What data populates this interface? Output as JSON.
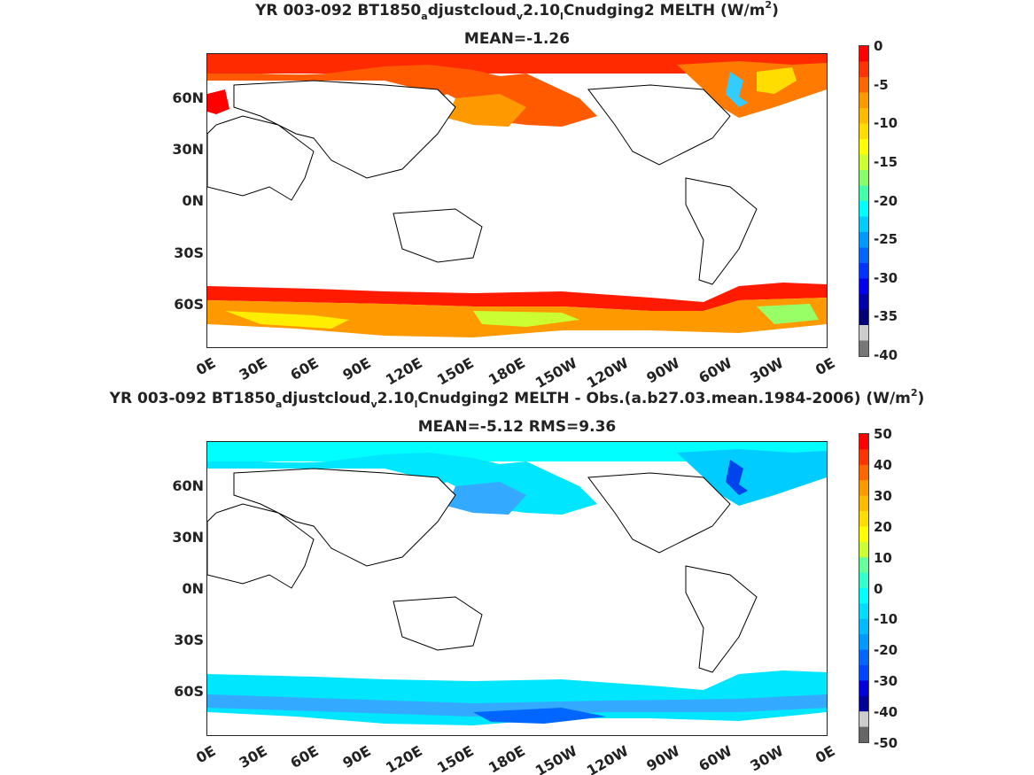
{
  "panels": [
    {
      "title_line1_pre": "YR 003-092 BT1850",
      "title_sub1": "a",
      "title_mid1": "djustcloud",
      "title_sub2": "v",
      "title_mid2": "2.10",
      "title_sub3": "l",
      "title_post": "Cnudging2  MELTH (W/m",
      "title_sup": "2",
      "title_close": ")",
      "title_line2": "MEAN=-1.26",
      "lat_labels": [
        "60N",
        "30N",
        "0N",
        "30S",
        "60S"
      ],
      "lon_labels": [
        "0E",
        "30E",
        "60E",
        "90E",
        "120E",
        "150E",
        "180E",
        "150W",
        "120W",
        "90W",
        "60W",
        "30W",
        "0E"
      ],
      "colorbar_labels": [
        "0",
        "-5",
        "-10",
        "-15",
        "-20",
        "-25",
        "-30",
        "-35",
        "-40"
      ],
      "colorbar_colors": [
        "#ff0000",
        "#ff3300",
        "#ff6600",
        "#ff9900",
        "#ffbb00",
        "#ffdd00",
        "#ffff00",
        "#ccff33",
        "#88ff66",
        "#44ffaa",
        "#00ffff",
        "#00ccff",
        "#0099ff",
        "#0066ff",
        "#0033ff",
        "#0000ee",
        "#0000aa",
        "#000077",
        "#cccccc",
        "#777777"
      ]
    },
    {
      "title_line1_pre": "YR 003-092 BT1850",
      "title_sub1": "a",
      "title_mid1": "djustcloud",
      "title_sub2": "v",
      "title_mid2": "2.10",
      "title_sub3": "l",
      "title_post": "Cnudging2 MELTH - Obs.(a.b27.03.mean.1984-2006) (W/m",
      "title_sup": "2",
      "title_close": ")",
      "title_line2": "MEAN=-5.12 RMS=9.36",
      "lat_labels": [
        "60N",
        "30N",
        "0N",
        "30S",
        "60S"
      ],
      "lon_labels": [
        "0E",
        "30E",
        "60E",
        "90E",
        "120E",
        "150E",
        "180E",
        "150W",
        "120W",
        "90W",
        "60W",
        "30W",
        "0E"
      ],
      "colorbar_labels": [
        "50",
        "40",
        "30",
        "20",
        "10",
        "0",
        "-10",
        "-20",
        "-30",
        "-40",
        "-50"
      ],
      "colorbar_colors": [
        "#ff0000",
        "#ff3300",
        "#ff6600",
        "#ff9900",
        "#ffbb00",
        "#ffdd00",
        "#ffff00",
        "#ccff33",
        "#66ff99",
        "#33ffcc",
        "#00ffff",
        "#00ddff",
        "#00bbff",
        "#0099ff",
        "#0066ff",
        "#0044ff",
        "#0000dd",
        "#000099",
        "#cccccc",
        "#666666"
      ]
    }
  ]
}
